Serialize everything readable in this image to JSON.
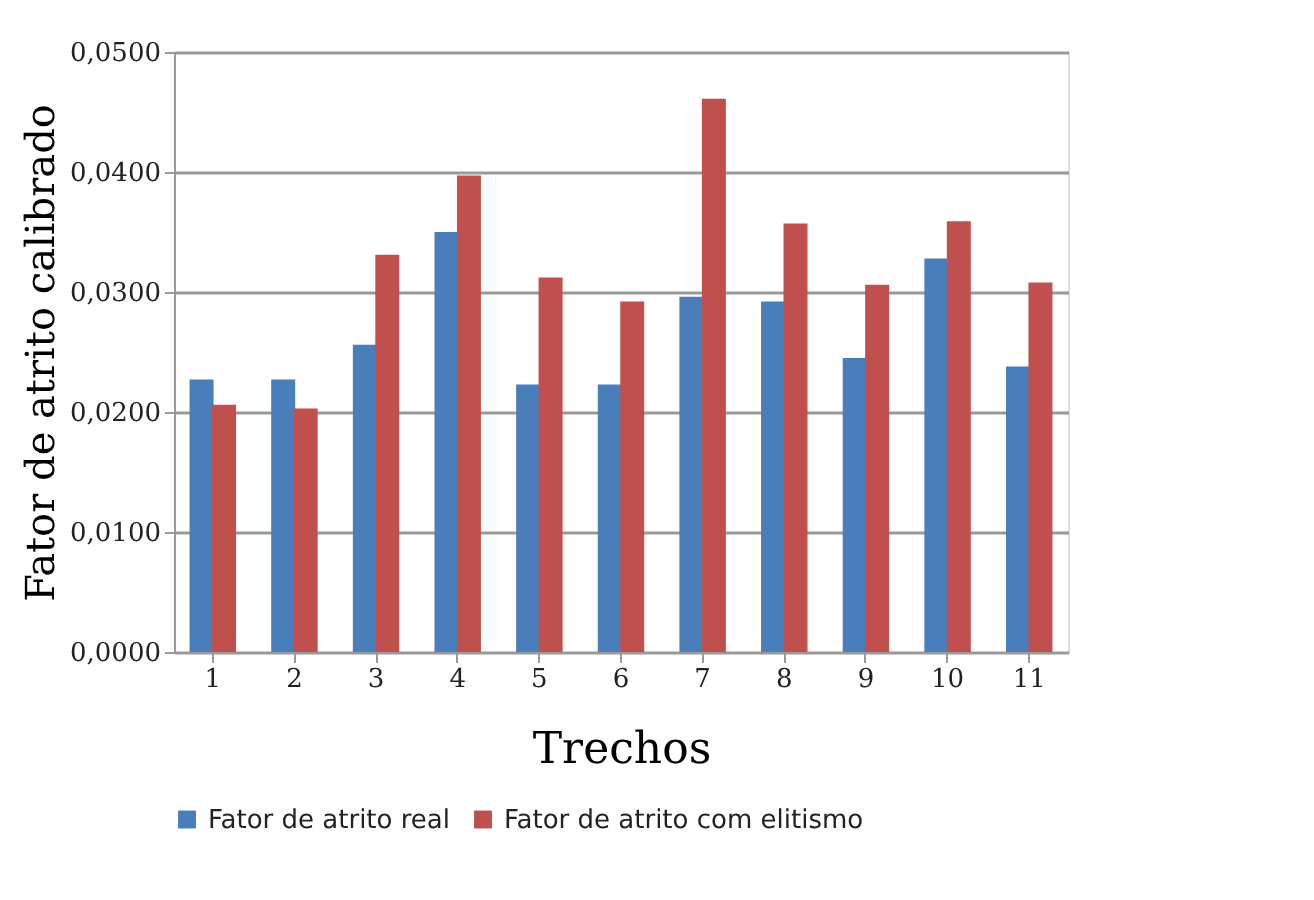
{
  "chart_data": {
    "type": "bar",
    "xlabel": "Trechos",
    "ylabel": "Fator de atrito calibrado",
    "categories": [
      "1",
      "2",
      "3",
      "4",
      "5",
      "6",
      "7",
      "8",
      "9",
      "10",
      "11"
    ],
    "series": [
      {
        "name": "Fator de atrito real",
        "color": "#4a7ebb",
        "values": [
          0.0227,
          0.0227,
          0.0256,
          0.035,
          0.0223,
          0.0223,
          0.0296,
          0.0292,
          0.0245,
          0.0328,
          0.0238
        ]
      },
      {
        "name": "Fator de atrito com elitismo",
        "color": "#c0504d",
        "values": [
          0.0206,
          0.0203,
          0.0331,
          0.0397,
          0.0312,
          0.0292,
          0.0461,
          0.0357,
          0.0306,
          0.0359,
          0.0308
        ]
      }
    ],
    "ylim": [
      0,
      0.05
    ],
    "yticks": [
      {
        "value": 0,
        "label": "0,0000"
      },
      {
        "value": 0.01,
        "label": "0,0100"
      },
      {
        "value": 0.02,
        "label": "0,0200"
      },
      {
        "value": 0.03,
        "label": "0,0300"
      },
      {
        "value": 0.04,
        "label": "0,0400"
      },
      {
        "value": 0.05,
        "label": "0,0500"
      }
    ],
    "grid": "y",
    "legend": "bottom"
  }
}
